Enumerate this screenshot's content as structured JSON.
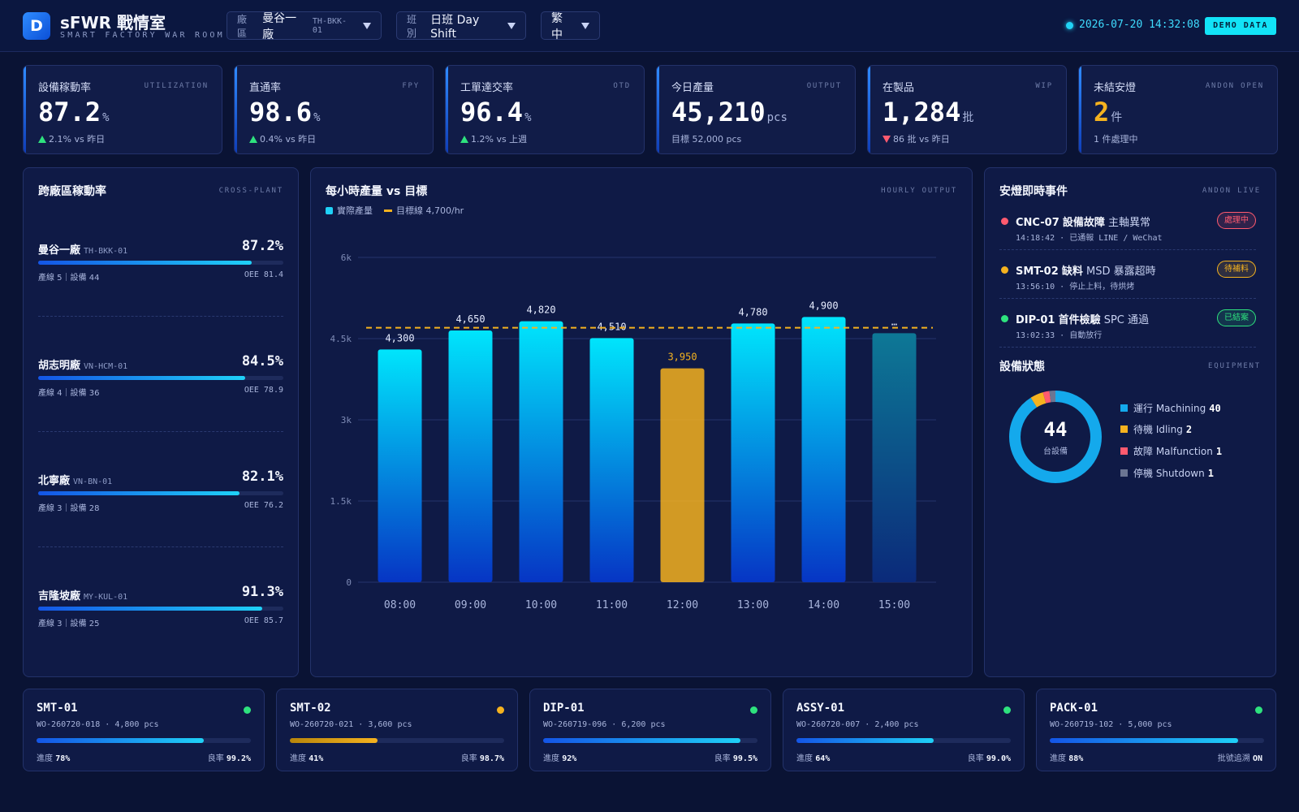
{
  "header": {
    "logo_letter": "D",
    "title": "sFWR 戰情室",
    "subtitle": "SMART FACTORY WAR ROOM",
    "plant_select": {
      "key": "廠區",
      "value": "曼谷一廠",
      "code": "TH-BKK-01"
    },
    "shift_select": {
      "key": "班別",
      "value": "日班 Day Shift"
    },
    "lang_select": {
      "value": "繁中"
    },
    "datetime": "2026-07-20 14:32:08",
    "badge": "DEMO DATA"
  },
  "kpis": [
    {
      "label": "設備稼動率",
      "en": "UTILIZATION",
      "value": "87.2",
      "unit": "%",
      "sub": "2.1% vs 昨日",
      "trend": "up"
    },
    {
      "label": "直通率",
      "en": "FPY",
      "value": "98.6",
      "unit": "%",
      "sub": "0.4% vs 昨日",
      "trend": "up"
    },
    {
      "label": "工單達交率",
      "en": "OTD",
      "value": "96.4",
      "unit": "%",
      "sub": "1.2% vs 上週",
      "trend": "up"
    },
    {
      "label": "今日產量",
      "en": "OUTPUT",
      "value": "45,210",
      "unit": "pcs",
      "sub": "目標 52,000 pcs",
      "trend": "none"
    },
    {
      "label": "在製品",
      "en": "WIP",
      "value": "1,284",
      "unit": "批",
      "sub": "86 批 vs 昨日",
      "trend": "down"
    },
    {
      "label": "未結安燈",
      "en": "ANDON OPEN",
      "value": "2",
      "unit": "件",
      "sub": "1 件處理中",
      "trend": "warn"
    }
  ],
  "plants_panel": {
    "title": "跨廠區稼動率",
    "en": "CROSS-PLANT",
    "plants": [
      {
        "name": "曼谷一廠",
        "code": "TH-BKK-01",
        "pct_label": "87.2%",
        "pct": 87.2,
        "meta": "產線 5｜設備 44",
        "oee": "OEE 81.4"
      },
      {
        "name": "胡志明廠",
        "code": "VN-HCM-01",
        "pct_label": "84.5%",
        "pct": 84.5,
        "meta": "產線 4｜設備 36",
        "oee": "OEE 78.9"
      },
      {
        "name": "北寧廠",
        "code": "VN-BN-01",
        "pct_label": "82.1%",
        "pct": 82.1,
        "meta": "產線 3｜設備 28",
        "oee": "OEE 76.2"
      },
      {
        "name": "吉隆坡廠",
        "code": "MY-KUL-01",
        "pct_label": "91.3%",
        "pct": 91.3,
        "meta": "產線 3｜設備 25",
        "oee": "OEE 85.7"
      }
    ]
  },
  "chart_panel": {
    "title": "每小時產量 vs 目標",
    "en": "HOURLY OUTPUT",
    "legend_actual": "實際產量",
    "legend_target": "目標線 4,700/hr"
  },
  "chart_data": {
    "type": "bar",
    "categories": [
      "08:00",
      "09:00",
      "10:00",
      "11:00",
      "12:00",
      "13:00",
      "14:00",
      "15:00"
    ],
    "values": [
      4300,
      4650,
      4820,
      4510,
      3950,
      4780,
      4900,
      4600
    ],
    "value_labels": [
      "4,300",
      "4,650",
      "4,820",
      "4,510",
      "3,950",
      "4,780",
      "4,900",
      "…"
    ],
    "target": 4700,
    "ylim": [
      0,
      6000
    ],
    "yticks": [
      0,
      1500,
      3000,
      4500,
      6000
    ],
    "ytick_labels": [
      "0",
      "1.5k",
      "3k",
      "4.5k",
      "6k"
    ],
    "below_target_color": "#f5b21f",
    "actual_color": "#1fd1f7",
    "in_progress_index": 7
  },
  "andon_panel": {
    "title": "安燈即時事件",
    "en": "ANDON LIVE",
    "events": [
      {
        "station": "CNC-07",
        "type": "設備故障",
        "desc": "主軸異常",
        "meta": "14:18:42 · 已通報 LINE / WeChat",
        "badge": "處理中",
        "color": "#ff5a6f"
      },
      {
        "station": "SMT-02",
        "type": "缺料",
        "desc": "MSD 暴露超時",
        "meta": "13:56:10 · 停止上料，待烘烤",
        "badge": "待補料",
        "color": "#f5b21f"
      },
      {
        "station": "DIP-01",
        "type": "首件檢驗",
        "desc": "SPC 通過",
        "meta": "13:02:33 · 自動放行",
        "badge": "已結案",
        "color": "#2ee27e"
      }
    ]
  },
  "equipment": {
    "title": "設備狀態",
    "en": "EQUIPMENT",
    "total": "44",
    "total_label": "台設備",
    "states": [
      {
        "label": "運行 Machining",
        "count": 40,
        "color": "#14a9ec"
      },
      {
        "label": "待機 Idling",
        "count": 2,
        "color": "#f5b21f"
      },
      {
        "label": "故障 Malfunction",
        "count": 1,
        "color": "#ff5a6f"
      },
      {
        "label": "停機 Shutdown",
        "count": 1,
        "color": "#6b7592"
      }
    ]
  },
  "lines": [
    {
      "name": "SMT-01",
      "wo": "WO-260720-018 · 4,800 pcs",
      "progress": 78,
      "progress_label": "78%",
      "right_key": "良率",
      "right_val": "99.2%",
      "status_color": "#2ee27e",
      "bar": "blue"
    },
    {
      "name": "SMT-02",
      "wo": "WO-260720-021 · 3,600 pcs",
      "progress": 41,
      "progress_label": "41%",
      "right_key": "良率",
      "right_val": "98.7%",
      "status_color": "#f5b21f",
      "bar": "amber"
    },
    {
      "name": "DIP-01",
      "wo": "WO-260719-096 · 6,200 pcs",
      "progress": 92,
      "progress_label": "92%",
      "right_key": "良率",
      "right_val": "99.5%",
      "status_color": "#2ee27e",
      "bar": "blue"
    },
    {
      "name": "ASSY-01",
      "wo": "WO-260720-007 · 2,400 pcs",
      "progress": 64,
      "progress_label": "64%",
      "right_key": "良率",
      "right_val": "99.0%",
      "status_color": "#2ee27e",
      "bar": "blue"
    },
    {
      "name": "PACK-01",
      "wo": "WO-260719-102 · 5,000 pcs",
      "progress": 88,
      "progress_label": "88%",
      "right_key": "批號追溯",
      "right_val": "ON",
      "status_color": "#2ee27e",
      "bar": "blue"
    }
  ],
  "labels": {
    "progress_key": "進度"
  }
}
